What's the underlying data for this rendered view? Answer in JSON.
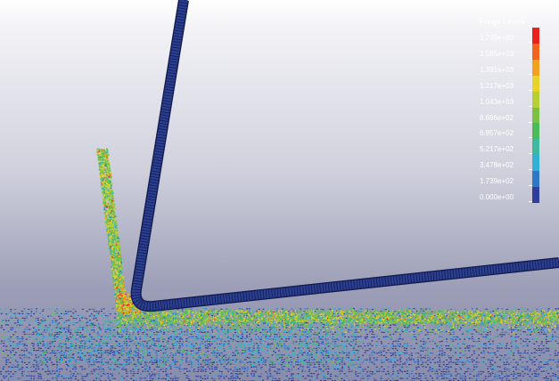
{
  "legend": {
    "title": "Fringe Levels",
    "levels": [
      "1.739e+03",
      "1.565e+03",
      "1.391e+03",
      "1.217e+03",
      "1.043e+03",
      "8.696e+02",
      "6.957e+02",
      "5.217e+02",
      "3.478e+02",
      "1.739e+02",
      "0.000e+00"
    ],
    "colors": [
      "#e8231f",
      "#f0641e",
      "#f2a020",
      "#e8d32a",
      "#b6cf35",
      "#7cc144",
      "#4cbb55",
      "#3fb8a0",
      "#32b1d6",
      "#2f78c8",
      "#2d3f9a"
    ]
  },
  "colors": {
    "rigid_pipe": "#2b3e8f",
    "rigid_edge": "#101a4d",
    "background_top": "#ffffff",
    "background_bottom": "#8a8cab"
  }
}
